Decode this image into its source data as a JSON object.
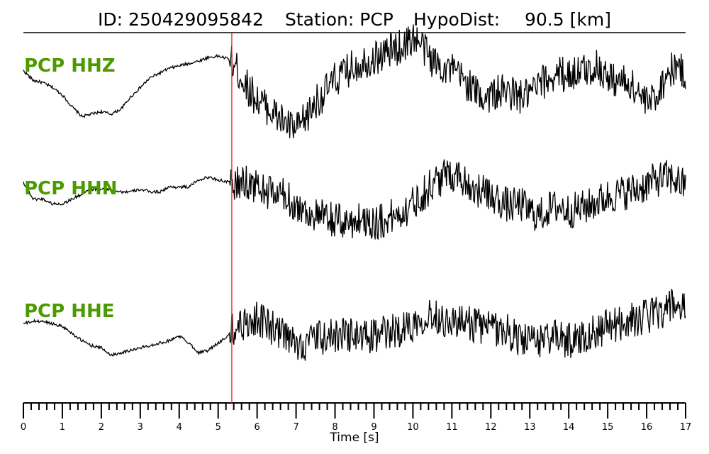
{
  "title": {
    "id_text": "ID: 250429095842",
    "station_text": "Station: PCP",
    "dist_label": "HypoDist:",
    "dist_value": "90.5 [km]"
  },
  "colors": {
    "trace": "#000000",
    "label": "#4c9a00",
    "pick_line": "#e8332e",
    "axis": "#000000"
  },
  "chart_data": {
    "type": "line",
    "title": "ID: 250429095842   Station: PCP   HypoDist:    90.5 [km]",
    "xlabel": "Time [s]",
    "ylabel": "",
    "xlim": [
      0,
      17
    ],
    "x_ticks": [
      "0",
      "1",
      "2",
      "3",
      "4",
      "5",
      "6",
      "7",
      "8",
      "9",
      "10",
      "11",
      "12",
      "13",
      "14",
      "15",
      "16",
      "17"
    ],
    "grid": false,
    "pick_time": 5.35,
    "series": [
      {
        "name": "PCP HHZ",
        "x": [
          0,
          0.25,
          0.5,
          0.75,
          1,
          1.25,
          1.5,
          1.75,
          2,
          2.25,
          2.5,
          2.75,
          3,
          3.25,
          3.5,
          3.75,
          4,
          4.25,
          4.5,
          4.75,
          5,
          5.25,
          5.5,
          5.75,
          6,
          6.25,
          6.5,
          6.75,
          7,
          7.25,
          7.5,
          7.75,
          8,
          8.25,
          8.5,
          8.75,
          9,
          9.25,
          9.5,
          9.75,
          10,
          10.25,
          10.5,
          10.75,
          11,
          11.25,
          11.5,
          11.75,
          12,
          12.25,
          12.5,
          12.75,
          13,
          13.25,
          13.5,
          13.75,
          14,
          14.25,
          14.5,
          14.75,
          15,
          15.25,
          15.5,
          15.75,
          16,
          16.25,
          16.5,
          16.75,
          17
        ],
        "y": [
          0.6,
          0.2,
          0.1,
          -0.1,
          -0.4,
          -0.9,
          -1.3,
          -1.2,
          -1.1,
          -1.2,
          -1.0,
          -0.5,
          -0.1,
          0.3,
          0.5,
          0.7,
          0.8,
          0.9,
          1.0,
          1.15,
          1.2,
          1.1,
          0.6,
          -0.1,
          -0.6,
          -0.9,
          -1.3,
          -1.6,
          -1.9,
          -1.4,
          -0.7,
          -0.3,
          0.2,
          0.5,
          0.8,
          1.0,
          1.1,
          1.3,
          1.5,
          1.6,
          2.0,
          1.6,
          1.0,
          0.8,
          0.6,
          0.3,
          -0.1,
          -0.5,
          -0.4,
          -0.3,
          -0.3,
          -0.5,
          -0.4,
          0.0,
          0.3,
          0.5,
          0.4,
          0.6,
          0.6,
          0.8,
          0.3,
          0.2,
          0.1,
          -0.2,
          -0.8,
          -0.4,
          0.4,
          0.8,
          0.4
        ],
        "noise_from": 5.3
      },
      {
        "name": "PCP HHN",
        "x": [
          0,
          0.25,
          0.5,
          0.75,
          1,
          1.25,
          1.5,
          1.75,
          2,
          2.25,
          2.5,
          2.75,
          3,
          3.25,
          3.5,
          3.75,
          4,
          4.25,
          4.5,
          4.75,
          5,
          5.25,
          5.5,
          5.75,
          6,
          6.25,
          6.5,
          6.75,
          7,
          7.25,
          7.5,
          7.75,
          8,
          8.25,
          8.5,
          8.75,
          9,
          9.25,
          9.5,
          9.75,
          10,
          10.25,
          10.5,
          10.75,
          11,
          11.25,
          11.5,
          11.75,
          12,
          12.25,
          12.5,
          12.75,
          13,
          13.25,
          13.5,
          13.75,
          14,
          14.25,
          14.5,
          14.75,
          15,
          15.25,
          15.5,
          15.75,
          16,
          16.25,
          16.5,
          16.75,
          17
        ],
        "y": [
          0.8,
          0.1,
          0.1,
          -0.1,
          -0.1,
          0.1,
          0.3,
          0.5,
          0.5,
          0.5,
          0.4,
          0.4,
          0.5,
          0.4,
          0.4,
          0.6,
          0.6,
          0.6,
          0.9,
          1.0,
          0.9,
          0.8,
          0.7,
          0.8,
          0.6,
          0.4,
          0.3,
          0.2,
          -0.2,
          -0.4,
          -0.6,
          -0.7,
          -0.8,
          -0.9,
          -0.8,
          -0.7,
          -0.9,
          -0.8,
          -0.6,
          -0.4,
          -0.1,
          0.3,
          0.7,
          1.0,
          1.2,
          1.0,
          0.6,
          0.4,
          0.2,
          0.0,
          -0.2,
          -0.1,
          -0.4,
          -0.6,
          -0.3,
          -0.2,
          -0.4,
          -0.3,
          -0.2,
          0.0,
          0.2,
          0.3,
          0.4,
          0.5,
          0.7,
          0.9,
          1.0,
          0.9,
          0.6
        ],
        "noise_from": 5.3
      },
      {
        "name": "PCP HHE",
        "x": [
          0,
          0.25,
          0.5,
          0.75,
          1,
          1.25,
          1.5,
          1.75,
          2,
          2.25,
          2.5,
          2.75,
          3,
          3.25,
          3.5,
          3.75,
          4,
          4.25,
          4.5,
          4.75,
          5,
          5.25,
          5.5,
          5.75,
          6,
          6.25,
          6.5,
          6.75,
          7,
          7.25,
          7.5,
          7.75,
          8,
          8.25,
          8.5,
          8.75,
          9,
          9.25,
          9.5,
          9.75,
          10,
          10.25,
          10.5,
          10.75,
          11,
          11.25,
          11.5,
          11.75,
          12,
          12.25,
          12.5,
          12.75,
          13,
          13.25,
          13.5,
          13.75,
          14,
          14.25,
          14.5,
          14.75,
          15,
          15.25,
          15.5,
          15.75,
          16,
          16.25,
          16.5,
          16.75,
          17
        ],
        "y": [
          0.4,
          0.5,
          0.5,
          0.4,
          0.3,
          0.0,
          -0.3,
          -0.5,
          -0.6,
          -0.9,
          -0.8,
          -0.7,
          -0.6,
          -0.5,
          -0.4,
          -0.3,
          -0.1,
          -0.4,
          -0.8,
          -0.7,
          -0.4,
          -0.1,
          0.3,
          0.5,
          0.6,
          0.4,
          0.1,
          -0.2,
          -0.5,
          -0.4,
          -0.2,
          -0.2,
          -0.1,
          0.0,
          -0.1,
          -0.2,
          -0.1,
          0.0,
          0.1,
          0.2,
          0.4,
          0.7,
          0.8,
          0.6,
          0.5,
          0.4,
          0.4,
          0.3,
          0.2,
          0.2,
          0.0,
          -0.2,
          -0.4,
          -0.3,
          -0.1,
          -0.2,
          -0.3,
          -0.2,
          0.0,
          0.1,
          0.3,
          0.4,
          0.5,
          0.6,
          0.7,
          0.9,
          1.0,
          1.2,
          0.9
        ],
        "noise_from": 5.3
      }
    ]
  }
}
